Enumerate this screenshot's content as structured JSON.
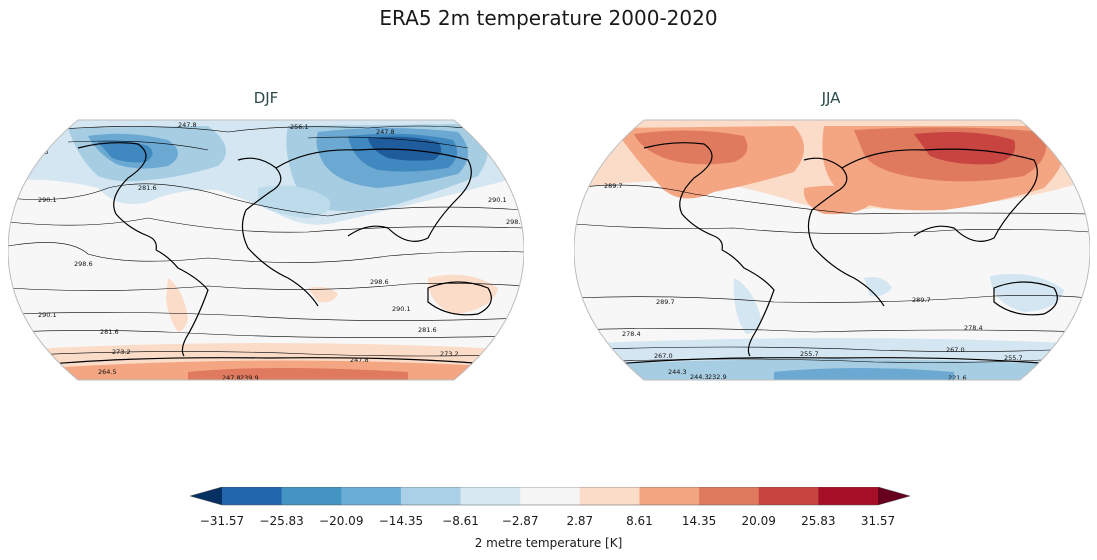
{
  "figure": {
    "title": "ERA5 2m temperature 2000-2020"
  },
  "maps": [
    {
      "title": "DJF",
      "contour_labels": [
        "247.8",
        "256.1",
        "247.8",
        "264.5",
        "281.6",
        "290.1",
        "290.1",
        "298.6",
        "298.6",
        "298.6",
        "290.1",
        "290.1",
        "281.6",
        "281.6",
        "273.2",
        "273.2",
        "264.5",
        "247.8",
        "239.9",
        "247.8"
      ]
    },
    {
      "title": "JJA",
      "contour_labels": [
        "289.7",
        "289.7",
        "289.7",
        "278.4",
        "278.4",
        "267.0",
        "267.0",
        "255.7",
        "255.7",
        "244.3",
        "232.9",
        "221.6",
        "244.3"
      ]
    }
  ],
  "colorbar": {
    "label": "2 metre temperature [K]",
    "ticks": [
      "−31.57",
      "−25.83",
      "−20.09",
      "−14.35",
      "−8.61",
      "−2.87",
      "2.87",
      "8.61",
      "14.35",
      "20.09",
      "25.83",
      "31.57"
    ],
    "colors": [
      "#053061",
      "#2166ac",
      "#4393c3",
      "#6aaed6",
      "#a9d0e6",
      "#d9e9f3",
      "#f5f5f5",
      "#fbdcc9",
      "#f4a582",
      "#e07a5f",
      "#c74440",
      "#a50f28",
      "#67001f"
    ]
  }
}
